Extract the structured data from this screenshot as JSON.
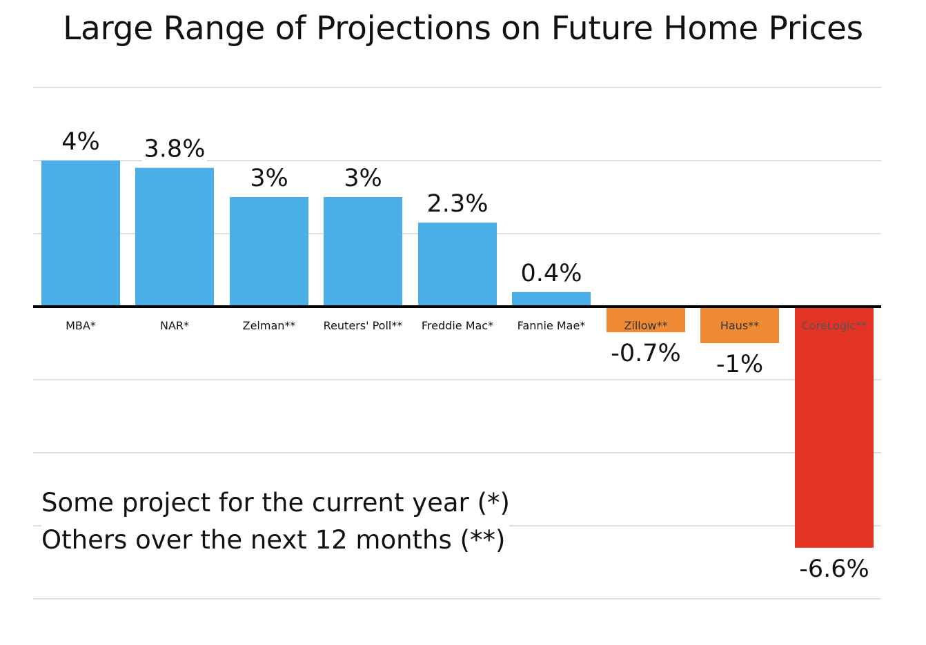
{
  "chart_data": {
    "type": "bar",
    "title": "Large Range of Projections on Future Home Prices",
    "categories": [
      "MBA*",
      "NAR*",
      "Zelman**",
      "Reuters' Poll**",
      "Freddie Mac*",
      "Fannie Mae*",
      "Zillow**",
      "Haus**",
      "CoreLogic**"
    ],
    "values": [
      4,
      3.8,
      3,
      3,
      2.3,
      0.4,
      -0.7,
      -1,
      -6.6
    ],
    "value_labels": [
      "4%",
      "3.8%",
      "3%",
      "3%",
      "2.3%",
      "0.4%",
      "-0.7%",
      "-1%",
      "-6.6%"
    ],
    "bar_colors": [
      "#4AAEE7",
      "#4AAEE7",
      "#4AAEE7",
      "#4AAEE7",
      "#4AAEE7",
      "#4AAEE7",
      "#EE8A33",
      "#EE8A33",
      "#E43325"
    ],
    "category_label_colors": [
      "#111111",
      "#111111",
      "#111111",
      "#111111",
      "#111111",
      "#111111",
      "#333333",
      "#333333",
      "#555555"
    ],
    "ylim": [
      -8,
      6
    ],
    "gridlines": [
      6,
      4,
      2,
      -2,
      -4,
      -6,
      -8
    ],
    "grid": true,
    "xlabel": "",
    "ylabel": ""
  },
  "notes": [
    "Some project for the current year (*)",
    "Others over the next 12 months (**)"
  ],
  "colors": {
    "grid": "#bdbdbd",
    "axis": "#000000",
    "text": "#111111"
  }
}
